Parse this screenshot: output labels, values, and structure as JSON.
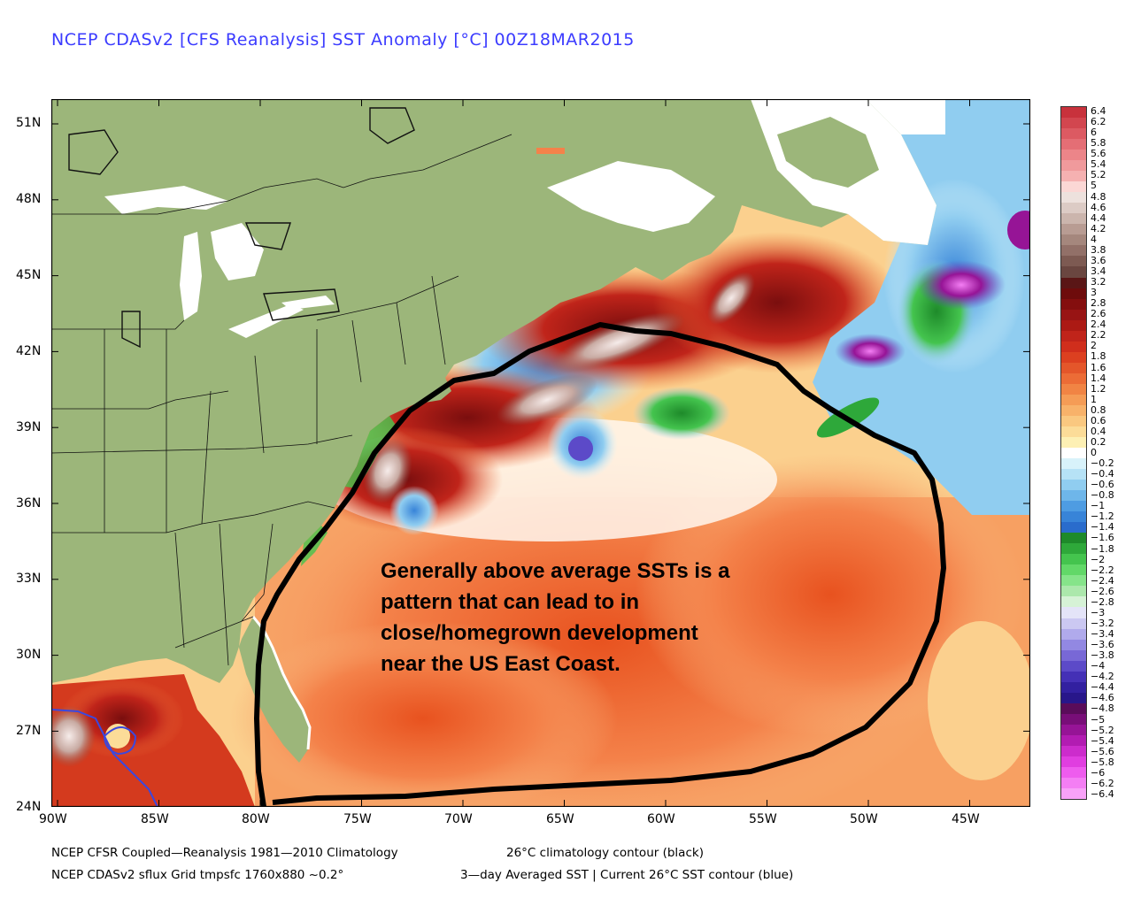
{
  "title": "NCEP CDASv2 [CFS Reanalysis] SST Anomaly [°C] 00Z18MAR2015",
  "footer": {
    "line1_left": "NCEP CFSR Coupled—Reanalysis 1981—2010 Climatology",
    "line1_right": "26°C climatology contour (black)",
    "line2_left": "NCEP CDASv2 sflux Grid tmpsfc 1760x880 ~0.2°",
    "line2_right": "3—day Averaged SST | Current 26°C SST contour (blue)"
  },
  "annotation": [
    "Generally above average SSTs is a",
    "pattern that can lead to in",
    "close/homegrown development",
    "near the US East Coast."
  ],
  "lat_labels": [
    "51N",
    "48N",
    "45N",
    "42N",
    "39N",
    "36N",
    "33N",
    "30N",
    "27N",
    "24N"
  ],
  "lon_labels": [
    "90W",
    "85W",
    "80W",
    "75W",
    "70W",
    "65W",
    "60W",
    "55W",
    "50W",
    "45W"
  ],
  "colorbar": {
    "labels": [
      "6.4",
      "6.2",
      "6",
      "5.8",
      "5.6",
      "5.4",
      "5.2",
      "5",
      "4.8",
      "4.6",
      "4.4",
      "4.2",
      "4",
      "3.8",
      "3.6",
      "3.4",
      "3.2",
      "3",
      "2.8",
      "2.6",
      "2.4",
      "2.2",
      "2",
      "1.8",
      "1.6",
      "1.4",
      "1.2",
      "1",
      "0.8",
      "0.6",
      "0.4",
      "0.2",
      "0",
      "−0.2",
      "−0.4",
      "−0.6",
      "−0.8",
      "−1",
      "−1.2",
      "−1.4",
      "−1.6",
      "−1.8",
      "−2",
      "−2.2",
      "−2.4",
      "−2.6",
      "−2.8",
      "−3",
      "−3.2",
      "−3.4",
      "−3.6",
      "−3.8",
      "−4",
      "−4.2",
      "−4.4",
      "−4.6",
      "−4.8",
      "−5",
      "−5.2",
      "−5.4",
      "−5.6",
      "−5.8",
      "−6",
      "−6.2",
      "−6.4"
    ],
    "colors": [
      "#c8323c",
      "#d2464f",
      "#dc5a62",
      "#e46e75",
      "#ec8589",
      "#f09a9c",
      "#f5b1b1",
      "#fbd7d5",
      "#ede1dd",
      "#dccbc5",
      "#cbb5ad",
      "#b89c93",
      "#a5877d",
      "#927068",
      "#7d5a52",
      "#6a4640",
      "#5a1616",
      "#6e0c0c",
      "#840e0e",
      "#981414",
      "#ac1a14",
      "#c0241a",
      "#d02e1c",
      "#dc4020",
      "#e4562a",
      "#ec6c36",
      "#f18444",
      "#f59c56",
      "#f8b26a",
      "#fac880",
      "#fcdc98",
      "#fdf0b4",
      "#ffffff",
      "#d8f2fa",
      "#b6e2f6",
      "#90cdf0",
      "#6eb6ea",
      "#4e9ce2",
      "#3884d8",
      "#2a6ccc",
      "#1e8a2a",
      "#2ea83a",
      "#44c44e",
      "#62d868",
      "#86e48a",
      "#ace8ac",
      "#d6f2d6",
      "#e4e4f8",
      "#cbc8f2",
      "#b0aaec",
      "#9288e2",
      "#7868d6",
      "#5c4ac8",
      "#4430b6",
      "#3220a0",
      "#28168a",
      "#5a0c5a",
      "#780e78",
      "#961496",
      "#b21cb2",
      "#cc2ccc",
      "#e03ee0",
      "#ee5cee",
      "#f47ef4",
      "#f8a2f8"
    ]
  },
  "map": {
    "land_color": "#9cb67a",
    "ocean_warm_color": "#f4824a",
    "ocean_base_color": "#fde2b4",
    "climatology_contour_color": "#000000",
    "current_contour_color": "#3a48e0"
  }
}
